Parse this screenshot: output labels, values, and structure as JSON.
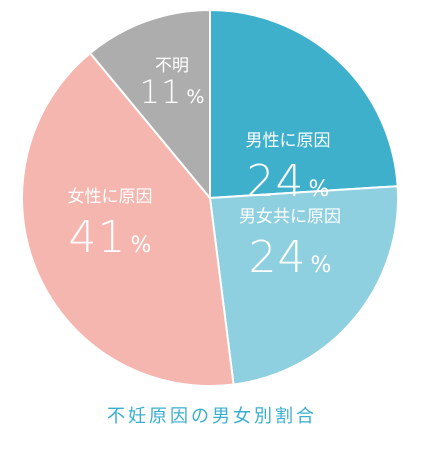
{
  "chart_data": {
    "type": "pie",
    "title": "不妊原因の男女別割合",
    "unit": "%",
    "slices": [
      {
        "label": "男性に原因",
        "value": 24,
        "color": "#3fb0cc"
      },
      {
        "label": "男女共に原因",
        "value": 24,
        "color": "#8ed0e0"
      },
      {
        "label": "女性に原因",
        "value": 41,
        "color": "#f4b6ae"
      },
      {
        "label": "不明",
        "value": 11,
        "color": "#adadad"
      }
    ]
  }
}
